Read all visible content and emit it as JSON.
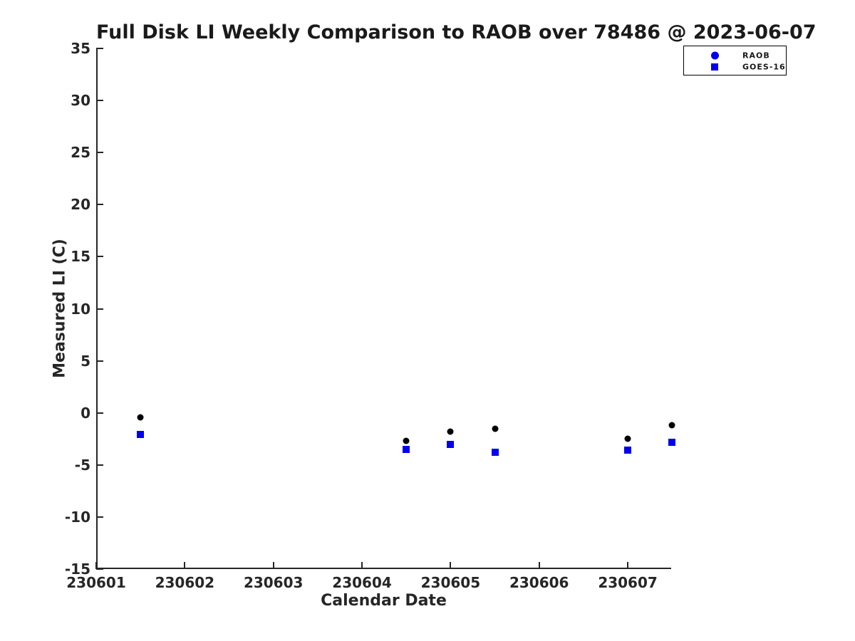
{
  "figure": {
    "title": "Full Disk LI Weekly Comparison to RAOB over 78486 @ 2023-06-07"
  },
  "chart_data": {
    "type": "scatter",
    "title": "Full Disk LI Weekly Comparison to RAOB over 78486 @ 2023-06-07",
    "xlabel": "Calendar Date",
    "ylabel": "Measured LI (C)",
    "xlim": [
      230601,
      230607.49
    ],
    "ylim": [
      -15,
      35
    ],
    "xticks": [
      230601,
      230602,
      230603,
      230604,
      230605,
      230606,
      230607
    ],
    "yticks": [
      35,
      30,
      25,
      20,
      15,
      10,
      5,
      0,
      -5,
      -10,
      -15
    ],
    "grid": false,
    "legend_position": "top-right-outside",
    "x": [
      230601.5,
      230604.5,
      230605,
      230605.5,
      230607,
      230607.5
    ],
    "series": [
      {
        "name": "RAOB",
        "marker": "circle",
        "color": "#000000",
        "legend_color": "#0000ee",
        "values": [
          -0.4,
          -2.7,
          -1.8,
          -1.5,
          -2.5,
          -1.2
        ]
      },
      {
        "name": "GOES-16",
        "marker": "square",
        "color": "#0000ee",
        "legend_color": "#0000ee",
        "values": [
          -2.1,
          -3.5,
          -3.0,
          -3.8,
          -3.6,
          -2.8
        ]
      }
    ]
  }
}
